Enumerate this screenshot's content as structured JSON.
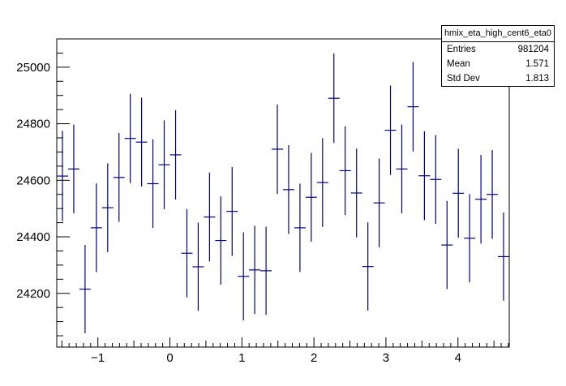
{
  "chart_data": {
    "type": "scatter",
    "title": "",
    "xlabel": "",
    "ylabel": "",
    "xlim": [
      -1.571,
      4.712
    ],
    "ylim": [
      24010,
      25100
    ],
    "grid": false,
    "x_ticks": [
      -1,
      0,
      1,
      2,
      3,
      4
    ],
    "x_tick_labels": [
      "−1",
      "0",
      "1",
      "2",
      "3",
      "4"
    ],
    "y_ticks": [
      24200,
      24400,
      24600,
      24800,
      25000
    ],
    "y_tick_labels": [
      "24200",
      "24400",
      "24600",
      "24800",
      "25000"
    ],
    "line_color": "#000080",
    "bin_half_width": 0.0785,
    "points": [
      {
        "x": -1.492,
        "y": 24615,
        "err": 160
      },
      {
        "x": -1.335,
        "y": 24640,
        "err": 157
      },
      {
        "x": -1.178,
        "y": 24215,
        "err": 156
      },
      {
        "x": -1.021,
        "y": 24432,
        "err": 157
      },
      {
        "x": -0.864,
        "y": 24503,
        "err": 157
      },
      {
        "x": -0.707,
        "y": 24610,
        "err": 157
      },
      {
        "x": -0.55,
        "y": 24748,
        "err": 158
      },
      {
        "x": -0.393,
        "y": 24735,
        "err": 157
      },
      {
        "x": -0.236,
        "y": 24588,
        "err": 157
      },
      {
        "x": -0.079,
        "y": 24655,
        "err": 157
      },
      {
        "x": 0.079,
        "y": 24690,
        "err": 158
      },
      {
        "x": 0.236,
        "y": 24342,
        "err": 156
      },
      {
        "x": 0.393,
        "y": 24294,
        "err": 156
      },
      {
        "x": 0.55,
        "y": 24470,
        "err": 157
      },
      {
        "x": 0.707,
        "y": 24387,
        "err": 156
      },
      {
        "x": 0.864,
        "y": 24490,
        "err": 157
      },
      {
        "x": 1.021,
        "y": 24260,
        "err": 156
      },
      {
        "x": 1.178,
        "y": 24283,
        "err": 156
      },
      {
        "x": 1.335,
        "y": 24280,
        "err": 156
      },
      {
        "x": 1.492,
        "y": 24710,
        "err": 158
      },
      {
        "x": 1.649,
        "y": 24567,
        "err": 157
      },
      {
        "x": 1.806,
        "y": 24432,
        "err": 156
      },
      {
        "x": 1.963,
        "y": 24540,
        "err": 157
      },
      {
        "x": 2.12,
        "y": 24592,
        "err": 157
      },
      {
        "x": 2.277,
        "y": 24890,
        "err": 158
      },
      {
        "x": 2.434,
        "y": 24634,
        "err": 157
      },
      {
        "x": 2.592,
        "y": 24555,
        "err": 157
      },
      {
        "x": 2.749,
        "y": 24295,
        "err": 156
      },
      {
        "x": 2.906,
        "y": 24520,
        "err": 157
      },
      {
        "x": 3.063,
        "y": 24777,
        "err": 158
      },
      {
        "x": 3.22,
        "y": 24640,
        "err": 157
      },
      {
        "x": 3.377,
        "y": 24860,
        "err": 158
      },
      {
        "x": 3.534,
        "y": 24616,
        "err": 157
      },
      {
        "x": 3.691,
        "y": 24603,
        "err": 157
      },
      {
        "x": 3.848,
        "y": 24371,
        "err": 156
      },
      {
        "x": 4.005,
        "y": 24554,
        "err": 157
      },
      {
        "x": 4.162,
        "y": 24395,
        "err": 156
      },
      {
        "x": 4.319,
        "y": 24533,
        "err": 157
      },
      {
        "x": 4.476,
        "y": 24550,
        "err": 157
      },
      {
        "x": 4.633,
        "y": 24330,
        "err": 156
      }
    ]
  },
  "stats": {
    "title": "hmix_eta_high_cent6_eta0",
    "entries_label": "Entries",
    "entries_value": "981204",
    "mean_label": "Mean",
    "mean_value": "1.571",
    "stddev_label": "Std Dev",
    "stddev_value": "1.813"
  }
}
